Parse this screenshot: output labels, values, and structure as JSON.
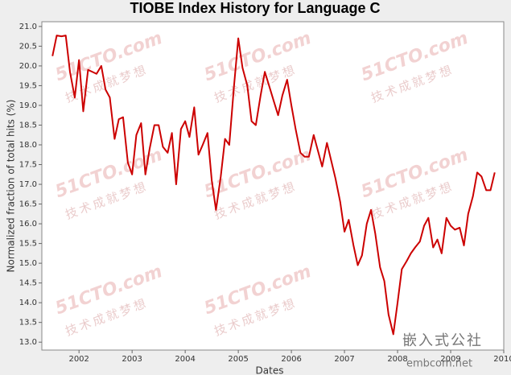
{
  "chart_data": {
    "type": "line",
    "title": "TIOBE Index History for Language C",
    "x_label": "Dates",
    "y_label": "Normalized fraction of total hits (%)",
    "watermarks": [
      "51CTO.com",
      "技术成就梦想",
      "嵌入式公社",
      "embcom.net"
    ],
    "xlim": [
      2001.3,
      2010.0
    ],
    "xticks": [
      2002,
      2003,
      2004,
      2005,
      2006,
      2007,
      2008,
      2009,
      2010
    ],
    "ylim": [
      12.8,
      21.12
    ],
    "yticks": [
      {
        "value": 13,
        "label": "13.0"
      },
      13.5,
      {
        "value": 14,
        "label": "14.0"
      },
      14.5,
      {
        "value": 15,
        "label": "15.0"
      },
      15.5,
      {
        "value": 16,
        "label": "16.0"
      },
      16.5,
      {
        "value": 17,
        "label": "17.0"
      },
      17.5,
      {
        "value": 18,
        "label": "18.0"
      },
      18.5,
      {
        "value": 19,
        "label": "19.0"
      },
      19.5,
      {
        "value": 20,
        "label": "20.0"
      },
      20.5,
      {
        "value": 21,
        "label": "21.0"
      }
    ],
    "grid": false,
    "x": [
      2001.5,
      2001.58,
      2001.67,
      2001.75,
      2001.83,
      2001.92,
      2002.0,
      2002.08,
      2002.17,
      2002.25,
      2002.33,
      2002.42,
      2002.5,
      2002.58,
      2002.67,
      2002.75,
      2002.83,
      2002.92,
      2003.0,
      2003.08,
      2003.17,
      2003.25,
      2003.33,
      2003.42,
      2003.5,
      2003.58,
      2003.67,
      2003.75,
      2003.83,
      2003.92,
      2004.0,
      2004.08,
      2004.17,
      2004.25,
      2004.33,
      2004.42,
      2004.5,
      2004.58,
      2004.67,
      2004.75,
      2004.83,
      2004.92,
      2005.0,
      2005.08,
      2005.17,
      2005.25,
      2005.33,
      2005.42,
      2005.5,
      2005.58,
      2005.67,
      2005.75,
      2005.83,
      2005.92,
      2006.0,
      2006.08,
      2006.17,
      2006.25,
      2006.33,
      2006.42,
      2006.5,
      2006.58,
      2006.67,
      2006.75,
      2006.83,
      2006.92,
      2007.0,
      2007.08,
      2007.17,
      2007.25,
      2007.33,
      2007.42,
      2007.5,
      2007.58,
      2007.67,
      2007.75,
      2007.83,
      2007.92,
      2008.0,
      2008.08,
      2008.17,
      2008.25,
      2008.33,
      2008.42,
      2008.5,
      2008.58,
      2008.67,
      2008.75,
      2008.83,
      2008.92,
      2009.0,
      2009.08,
      2009.17,
      2009.25,
      2009.33,
      2009.42,
      2009.5,
      2009.58,
      2009.67,
      2009.75,
      2009.83
    ],
    "series": [
      {
        "name": "C",
        "color": "#cc0000",
        "values": [
          20.25,
          20.77,
          20.75,
          20.77,
          19.85,
          19.2,
          20.15,
          18.85,
          19.9,
          19.85,
          19.8,
          20.0,
          19.4,
          19.2,
          18.15,
          18.65,
          18.7,
          17.55,
          17.25,
          18.25,
          18.55,
          17.25,
          17.9,
          18.5,
          18.5,
          17.95,
          17.8,
          18.3,
          17.0,
          18.4,
          18.6,
          18.2,
          18.95,
          17.75,
          18.0,
          18.3,
          17.1,
          16.35,
          17.2,
          18.15,
          18.0,
          19.5,
          20.7,
          19.95,
          19.5,
          18.6,
          18.5,
          19.25,
          19.85,
          19.5,
          19.1,
          18.75,
          19.25,
          19.65,
          19.0,
          18.4,
          17.8,
          17.7,
          17.7,
          18.25,
          17.85,
          17.45,
          18.05,
          17.6,
          17.15,
          16.55,
          15.8,
          16.1,
          15.45,
          14.95,
          15.2,
          16.0,
          16.35,
          15.75,
          14.9,
          14.55,
          13.7,
          13.2,
          14.0,
          14.85,
          15.05,
          15.25,
          15.4,
          15.55,
          15.95,
          16.15,
          15.4,
          15.6,
          15.25,
          16.15,
          15.95,
          15.85,
          15.9,
          15.45,
          16.25,
          16.7,
          17.3,
          17.2,
          16.85,
          16.85,
          17.3
        ]
      }
    ]
  }
}
